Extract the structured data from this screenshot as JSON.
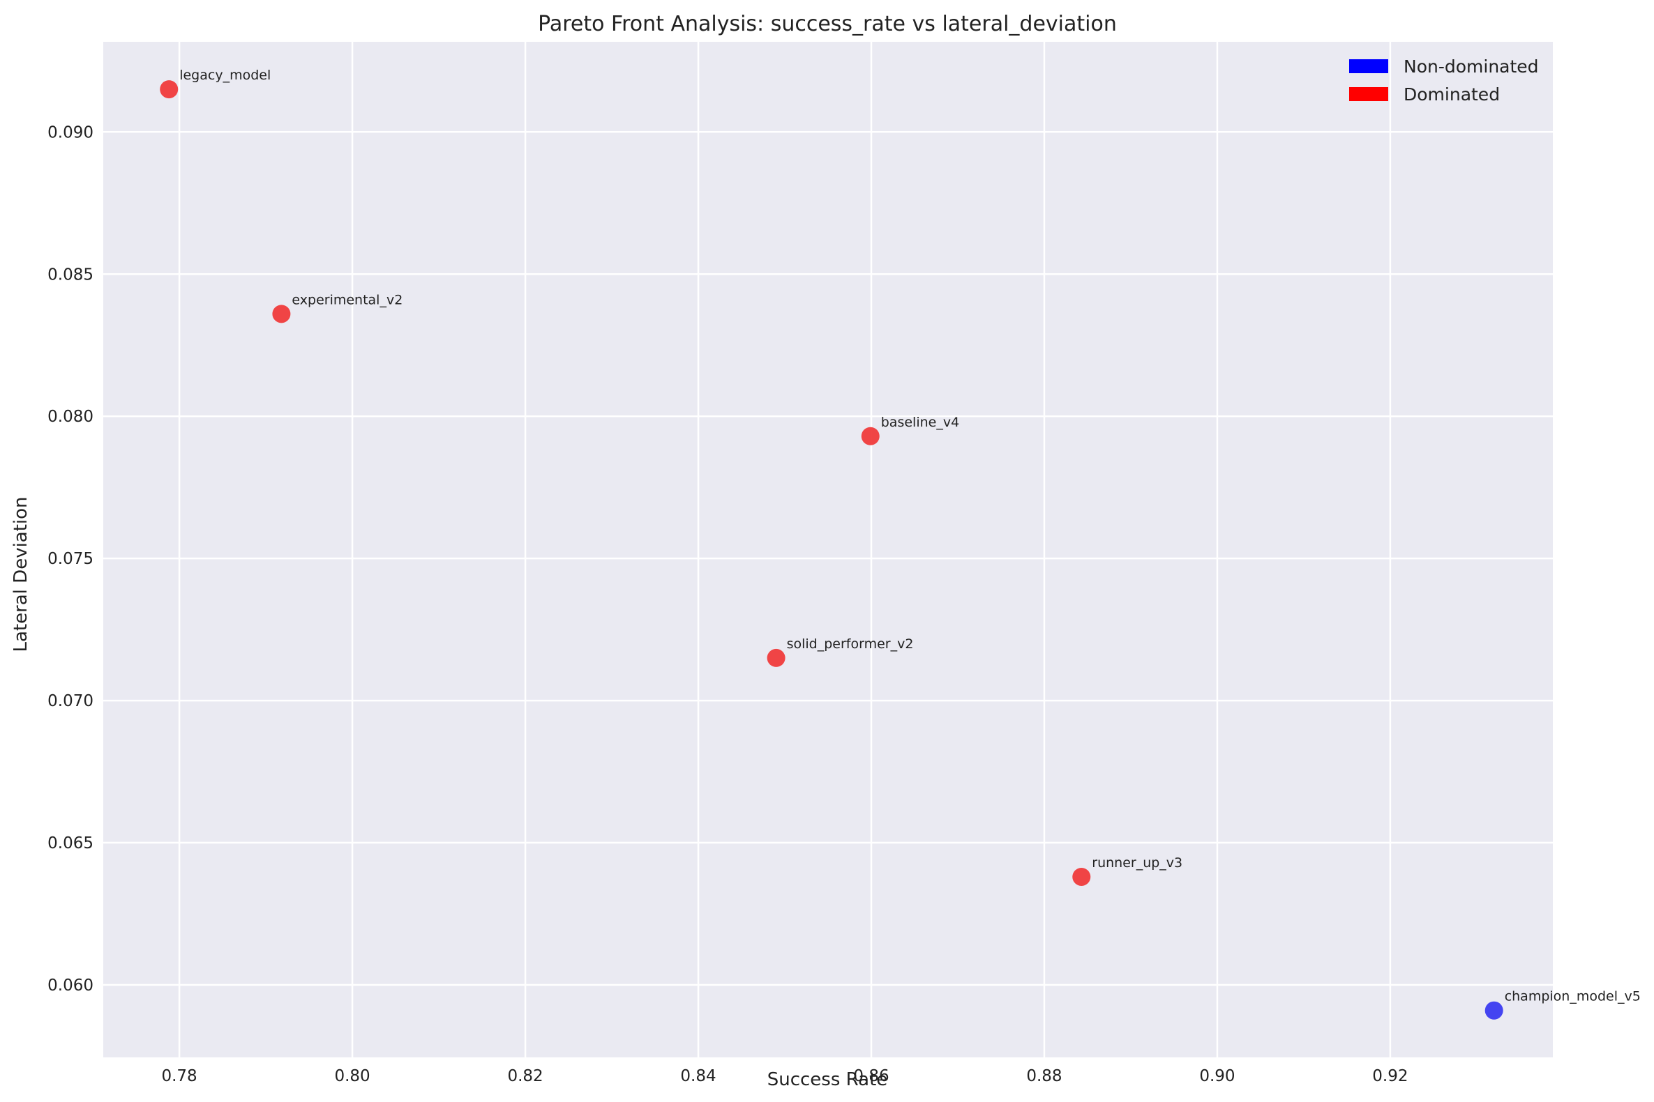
{
  "chart_data": {
    "type": "scatter",
    "title": "Pareto Front Analysis: success_rate vs lateral_deviation",
    "xlabel": "Success Rate",
    "ylabel": "Lateral Deviation",
    "xlim": [
      0.7712,
      0.9388
    ],
    "ylim": [
      0.05745,
      0.09317
    ],
    "xticks": [
      "0.78",
      "0.80",
      "0.82",
      "0.84",
      "0.86",
      "0.88",
      "0.90",
      "0.92"
    ],
    "yticks": [
      "0.060",
      "0.065",
      "0.070",
      "0.075",
      "0.080",
      "0.085",
      "0.090"
    ],
    "grid": true,
    "legend_position": "top-right",
    "legend": [
      {
        "label": "Non-dominated",
        "color": "#0000ff"
      },
      {
        "label": "Dominated",
        "color": "#ff0000"
      }
    ],
    "colors": {
      "non_dominated": "#3b3bf0",
      "dominated": "#f03b3b",
      "background": "#eaeaf2"
    },
    "points": [
      {
        "name": "legacy_model",
        "x": 0.7788,
        "y": 0.0915,
        "dominated": true
      },
      {
        "name": "experimental_v2",
        "x": 0.7918,
        "y": 0.0836,
        "dominated": true
      },
      {
        "name": "baseline_v4",
        "x": 0.8599,
        "y": 0.0793,
        "dominated": true
      },
      {
        "name": "solid_performer_v2",
        "x": 0.849,
        "y": 0.0715,
        "dominated": true
      },
      {
        "name": "runner_up_v3",
        "x": 0.8843,
        "y": 0.0638,
        "dominated": true
      },
      {
        "name": "champion_model_v5",
        "x": 0.932,
        "y": 0.0591,
        "dominated": false
      }
    ]
  }
}
